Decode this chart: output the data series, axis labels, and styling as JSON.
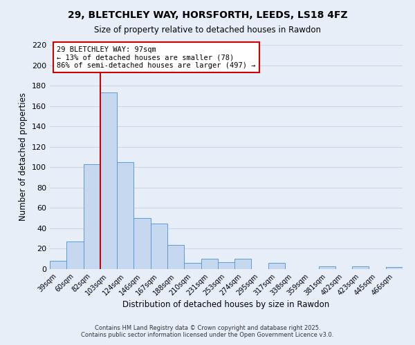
{
  "title": "29, BLETCHLEY WAY, HORSFORTH, LEEDS, LS18 4FZ",
  "subtitle": "Size of property relative to detached houses in Rawdon",
  "xlabel": "Distribution of detached houses by size in Rawdon",
  "ylabel": "Number of detached properties",
  "bin_labels": [
    "39sqm",
    "60sqm",
    "82sqm",
    "103sqm",
    "124sqm",
    "146sqm",
    "167sqm",
    "188sqm",
    "210sqm",
    "231sqm",
    "253sqm",
    "274sqm",
    "295sqm",
    "317sqm",
    "338sqm",
    "359sqm",
    "381sqm",
    "402sqm",
    "423sqm",
    "445sqm",
    "466sqm"
  ],
  "bar_heights": [
    8,
    27,
    103,
    173,
    105,
    50,
    45,
    24,
    6,
    10,
    7,
    10,
    0,
    6,
    0,
    0,
    3,
    0,
    3,
    0,
    2
  ],
  "bar_color": "#c5d8f0",
  "bar_edge_color": "#5b9bd5",
  "grid_color": "#c8d8ea",
  "background_color": "#e8eef8",
  "vline_color": "#cc0000",
  "annotation_title": "29 BLETCHLEY WAY: 97sqm",
  "annotation_line1": "← 13% of detached houses are smaller (78)",
  "annotation_line2": "86% of semi-detached houses are larger (497) →",
  "annotation_box_color": "#ffffff",
  "annotation_box_edge": "#cc0000",
  "footer1": "Contains HM Land Registry data © Crown copyright and database right 2025.",
  "footer2": "Contains public sector information licensed under the Open Government Licence v3.0.",
  "ylim": [
    0,
    220
  ],
  "yticks": [
    0,
    20,
    40,
    60,
    80,
    100,
    120,
    140,
    160,
    180,
    200,
    220
  ],
  "property_sqm": 97
}
